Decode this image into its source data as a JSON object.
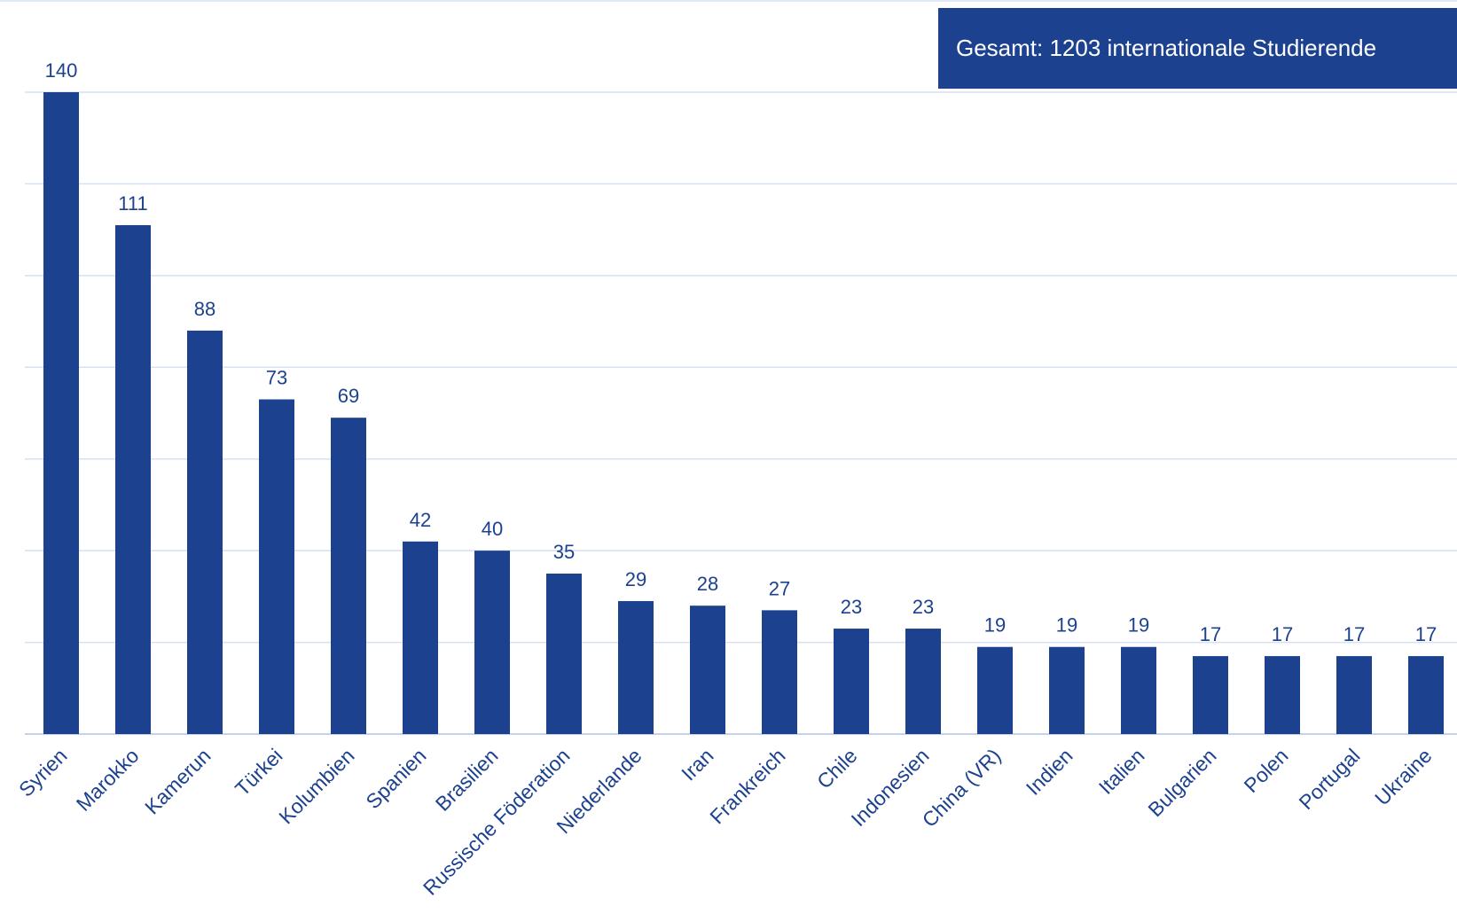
{
  "summary": {
    "text": "Gesamt: 1203 internationale Studierende"
  },
  "colors": {
    "bar": "#1c418e",
    "grid": "#d6e1f2",
    "text": "#1c418e",
    "box_bg": "#1c418e",
    "box_text": "#ffffff"
  },
  "chart_data": {
    "type": "bar",
    "title": "",
    "xlabel": "",
    "ylabel": "",
    "ylim": [
      0,
      140
    ],
    "grid": true,
    "categories": [
      "Syrien",
      "Marokko",
      "Kamerun",
      "Türkei",
      "Kolumbien",
      "Spanien",
      "Brasilien",
      "Russische Föderation",
      "Niederlande",
      "Iran",
      "Frankreich",
      "Chile",
      "Indonesien",
      "China (VR)",
      "Indien",
      "Italien",
      "Bulgarien",
      "Polen",
      "Portugal",
      "Ukraine"
    ],
    "values": [
      140,
      111,
      88,
      73,
      69,
      42,
      40,
      35,
      29,
      28,
      27,
      23,
      23,
      19,
      19,
      19,
      17,
      17,
      17,
      17
    ]
  }
}
